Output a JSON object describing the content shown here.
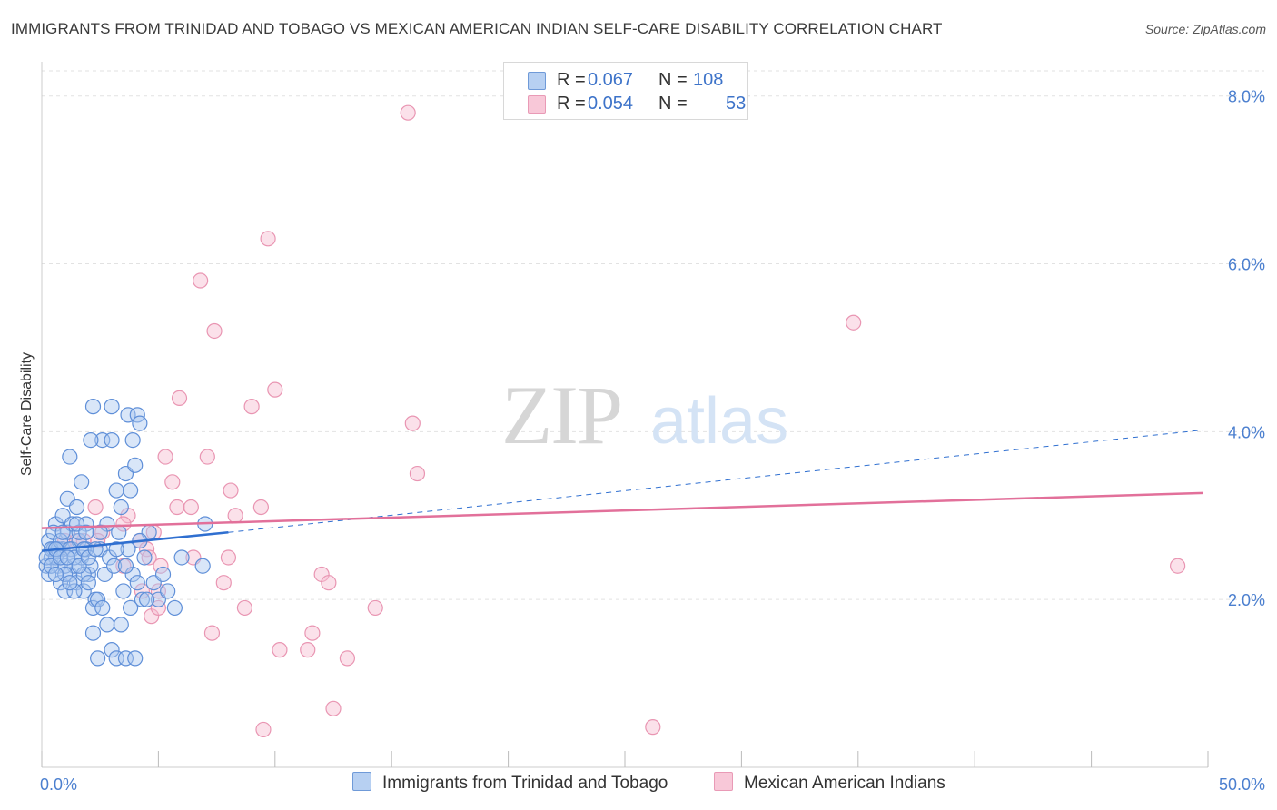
{
  "title": "IMMIGRANTS FROM TRINIDAD AND TOBAGO VS MEXICAN AMERICAN INDIAN SELF-CARE DISABILITY CORRELATION CHART",
  "source": "Source: ZipAtlas.com",
  "watermark": {
    "zip": "ZIP",
    "atlas": "atlas"
  },
  "legend": {
    "rows": [
      {
        "r_label": "R =",
        "r_value": "0.067",
        "n_label": "N =",
        "n_value": "108"
      },
      {
        "r_label": "R =",
        "r_value": "0.054",
        "n_label": "N =",
        "n_value": "53"
      }
    ]
  },
  "colors": {
    "blue_fill": "#aac8f0",
    "blue_stroke": "#5f8fd8",
    "blue_line": "#2f6fd0",
    "pink_fill": "#f6bcd0",
    "pink_stroke": "#e995b2",
    "pink_line": "#e2709a",
    "grid": "#e2e2e2",
    "tick_label": "#4b7fcf"
  },
  "chart_data": {
    "type": "scatter",
    "title": "IMMIGRANTS FROM TRINIDAD AND TOBAGO VS MEXICAN AMERICAN INDIAN SELF-CARE DISABILITY CORRELATION CHART",
    "xlabel": "",
    "ylabel": "Self-Care Disability",
    "xlim": [
      0,
      50
    ],
    "ylim": [
      0,
      8.3
    ],
    "x_tick_labels": [
      "0.0%",
      "50.0%"
    ],
    "y_ticks": [
      2.0,
      4.0,
      6.0,
      8.0
    ],
    "y_tick_labels": [
      "2.0%",
      "4.0%",
      "6.0%",
      "8.0%"
    ],
    "series": [
      {
        "name": "Immigrants from Trinidad and Tobago",
        "R": 0.067,
        "N": 108,
        "trend": {
          "x0": 0.0,
          "y0": 2.58,
          "x1": 8.0,
          "y1": 2.8,
          "dashed_to_x": 49.8,
          "dashed_to_y": 4.02
        },
        "points": [
          [
            0.2,
            2.4
          ],
          [
            0.3,
            2.7
          ],
          [
            0.4,
            2.5
          ],
          [
            0.5,
            2.6
          ],
          [
            0.6,
            2.9
          ],
          [
            0.7,
            2.4
          ],
          [
            0.8,
            2.2
          ],
          [
            0.9,
            2.6
          ],
          [
            1.0,
            2.1
          ],
          [
            1.1,
            2.8
          ],
          [
            1.2,
            2.3
          ],
          [
            1.3,
            2.6
          ],
          [
            1.4,
            2.4
          ],
          [
            1.5,
            2.2
          ],
          [
            1.6,
            2.7
          ],
          [
            1.7,
            2.5
          ],
          [
            1.8,
            2.1
          ],
          [
            1.9,
            2.9
          ],
          [
            2.0,
            2.3
          ],
          [
            0.3,
            2.3
          ],
          [
            0.5,
            2.8
          ],
          [
            0.7,
            2.6
          ],
          [
            0.9,
            3.0
          ],
          [
            1.1,
            3.2
          ],
          [
            1.3,
            2.9
          ],
          [
            1.5,
            3.1
          ],
          [
            1.7,
            3.4
          ],
          [
            1.9,
            2.6
          ],
          [
            2.1,
            2.4
          ],
          [
            2.3,
            2.0
          ],
          [
            0.4,
            2.6
          ],
          [
            0.6,
            2.5
          ],
          [
            0.8,
            2.7
          ],
          [
            1.0,
            2.4
          ],
          [
            1.2,
            2.6
          ],
          [
            1.4,
            2.1
          ],
          [
            1.6,
            2.8
          ],
          [
            1.8,
            2.3
          ],
          [
            2.0,
            2.2
          ],
          [
            2.2,
            1.9
          ],
          [
            0.2,
            2.5
          ],
          [
            0.4,
            2.4
          ],
          [
            0.6,
            2.6
          ],
          [
            0.8,
            2.5
          ],
          [
            1.0,
            2.3
          ],
          [
            1.2,
            2.2
          ],
          [
            1.4,
            2.5
          ],
          [
            1.6,
            2.4
          ],
          [
            1.8,
            2.6
          ],
          [
            2.0,
            2.5
          ],
          [
            2.5,
            2.6
          ],
          [
            2.7,
            2.3
          ],
          [
            2.9,
            2.5
          ],
          [
            3.1,
            2.4
          ],
          [
            3.3,
            2.8
          ],
          [
            3.5,
            2.1
          ],
          [
            3.7,
            2.6
          ],
          [
            3.9,
            2.3
          ],
          [
            4.1,
            2.2
          ],
          [
            4.3,
            2.0
          ],
          [
            2.4,
            2.0
          ],
          [
            2.6,
            1.9
          ],
          [
            2.8,
            1.7
          ],
          [
            3.0,
            1.4
          ],
          [
            3.2,
            1.3
          ],
          [
            3.4,
            1.7
          ],
          [
            3.6,
            1.3
          ],
          [
            3.8,
            1.9
          ],
          [
            4.0,
            1.3
          ],
          [
            2.2,
            1.6
          ],
          [
            2.4,
            1.3
          ],
          [
            2.6,
            3.9
          ],
          [
            3.0,
            3.9
          ],
          [
            3.2,
            3.3
          ],
          [
            3.4,
            3.1
          ],
          [
            3.6,
            3.5
          ],
          [
            3.8,
            3.3
          ],
          [
            4.0,
            3.6
          ],
          [
            3.0,
            4.3
          ],
          [
            2.2,
            4.3
          ],
          [
            3.7,
            4.2
          ],
          [
            4.1,
            4.2
          ],
          [
            4.2,
            4.1
          ],
          [
            3.9,
            3.9
          ],
          [
            2.1,
            3.9
          ],
          [
            1.2,
            3.7
          ],
          [
            2.8,
            2.9
          ],
          [
            3.2,
            2.6
          ],
          [
            3.6,
            2.4
          ],
          [
            4.4,
            2.5
          ],
          [
            4.6,
            2.8
          ],
          [
            4.8,
            2.2
          ],
          [
            5.0,
            2.0
          ],
          [
            5.4,
            2.1
          ],
          [
            5.7,
            1.9
          ],
          [
            6.0,
            2.5
          ],
          [
            6.9,
            2.4
          ],
          [
            7.0,
            2.9
          ],
          [
            4.2,
            2.7
          ],
          [
            4.5,
            2.0
          ],
          [
            5.2,
            2.3
          ],
          [
            1.5,
            2.9
          ],
          [
            0.9,
            2.8
          ],
          [
            0.6,
            2.3
          ],
          [
            1.9,
            2.8
          ],
          [
            2.3,
            2.6
          ],
          [
            2.5,
            2.8
          ],
          [
            1.1,
            2.5
          ]
        ]
      },
      {
        "name": "Mexican American Indians",
        "R": 0.054,
        "N": 53,
        "trend": {
          "x0": 0.0,
          "y0": 2.85,
          "x1": 49.8,
          "y1": 3.27
        },
        "points": [
          [
            15.7,
            7.8
          ],
          [
            9.7,
            6.3
          ],
          [
            6.8,
            5.8
          ],
          [
            7.4,
            5.2
          ],
          [
            34.8,
            5.3
          ],
          [
            10.0,
            4.5
          ],
          [
            5.9,
            4.4
          ],
          [
            9.0,
            4.3
          ],
          [
            15.9,
            4.1
          ],
          [
            5.3,
            3.7
          ],
          [
            7.1,
            3.7
          ],
          [
            16.1,
            3.5
          ],
          [
            5.6,
            3.4
          ],
          [
            8.1,
            3.3
          ],
          [
            9.4,
            3.1
          ],
          [
            5.8,
            3.1
          ],
          [
            6.4,
            3.1
          ],
          [
            8.3,
            3.0
          ],
          [
            3.7,
            3.0
          ],
          [
            2.3,
            3.1
          ],
          [
            4.8,
            2.8
          ],
          [
            4.2,
            2.7
          ],
          [
            3.5,
            2.9
          ],
          [
            4.5,
            2.6
          ],
          [
            2.6,
            2.8
          ],
          [
            2.4,
            2.7
          ],
          [
            4.6,
            2.5
          ],
          [
            6.5,
            2.5
          ],
          [
            8.0,
            2.5
          ],
          [
            5.1,
            2.4
          ],
          [
            3.5,
            2.4
          ],
          [
            12.0,
            2.3
          ],
          [
            12.3,
            2.2
          ],
          [
            7.8,
            2.2
          ],
          [
            5.0,
            2.1
          ],
          [
            4.3,
            2.1
          ],
          [
            4.7,
            1.8
          ],
          [
            5.0,
            1.9
          ],
          [
            8.7,
            1.9
          ],
          [
            14.3,
            1.9
          ],
          [
            7.3,
            1.6
          ],
          [
            11.6,
            1.6
          ],
          [
            10.2,
            1.4
          ],
          [
            11.4,
            1.4
          ],
          [
            13.1,
            1.3
          ],
          [
            12.5,
            0.7
          ],
          [
            9.5,
            0.45
          ],
          [
            26.2,
            0.48
          ],
          [
            48.7,
            2.4
          ],
          [
            1.0,
            2.7
          ],
          [
            1.5,
            2.7
          ],
          [
            0.9,
            2.6
          ],
          [
            1.8,
            2.7
          ]
        ]
      }
    ]
  },
  "bottom_legend": [
    "Immigrants from Trinidad and Tobago",
    "Mexican American Indians"
  ]
}
